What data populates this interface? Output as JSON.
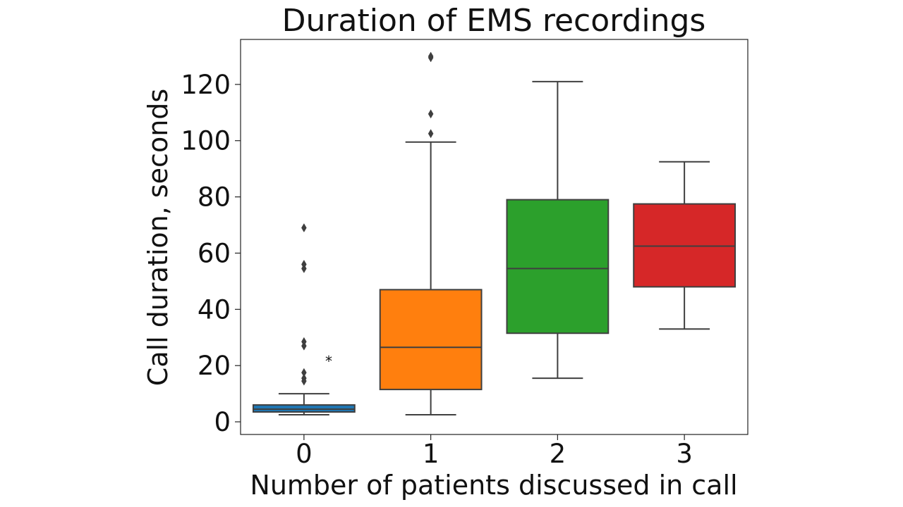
{
  "chart_data": {
    "type": "box",
    "title": "Duration of EMS recordings",
    "xlabel": "Number of patients discussed in call",
    "ylabel": "Call duration, seconds",
    "categories": [
      "0",
      "1",
      "2",
      "3"
    ],
    "ylim": [
      -4.5,
      136
    ],
    "yticks": [
      0,
      20,
      40,
      60,
      80,
      100,
      120
    ],
    "grid": false,
    "legend": "none",
    "annotation": "*",
    "boxes": [
      {
        "category": "0",
        "color": "#1f77b4",
        "whisker_low": 2.5,
        "q1": 3.5,
        "median": 4.5,
        "q3": 6,
        "whisker_high": 10,
        "outliers": [
          14.5,
          15.5,
          17.5,
          27,
          28.5,
          54.5,
          56,
          69
        ]
      },
      {
        "category": "1",
        "color": "#ff7f0e",
        "whisker_low": 2.5,
        "q1": 11.5,
        "median": 26.5,
        "q3": 47,
        "whisker_high": 99.5,
        "outliers": [
          102.5,
          109.5,
          129.5,
          130
        ]
      },
      {
        "category": "2",
        "color": "#2ca02c",
        "whisker_low": 15.5,
        "q1": 31.5,
        "median": 54.5,
        "q3": 79,
        "whisker_high": 121,
        "outliers": []
      },
      {
        "category": "3",
        "color": "#d62728",
        "whisker_low": 33,
        "q1": 48,
        "median": 62.5,
        "q3": 77.5,
        "whisker_high": 92.5,
        "outliers": []
      }
    ]
  }
}
